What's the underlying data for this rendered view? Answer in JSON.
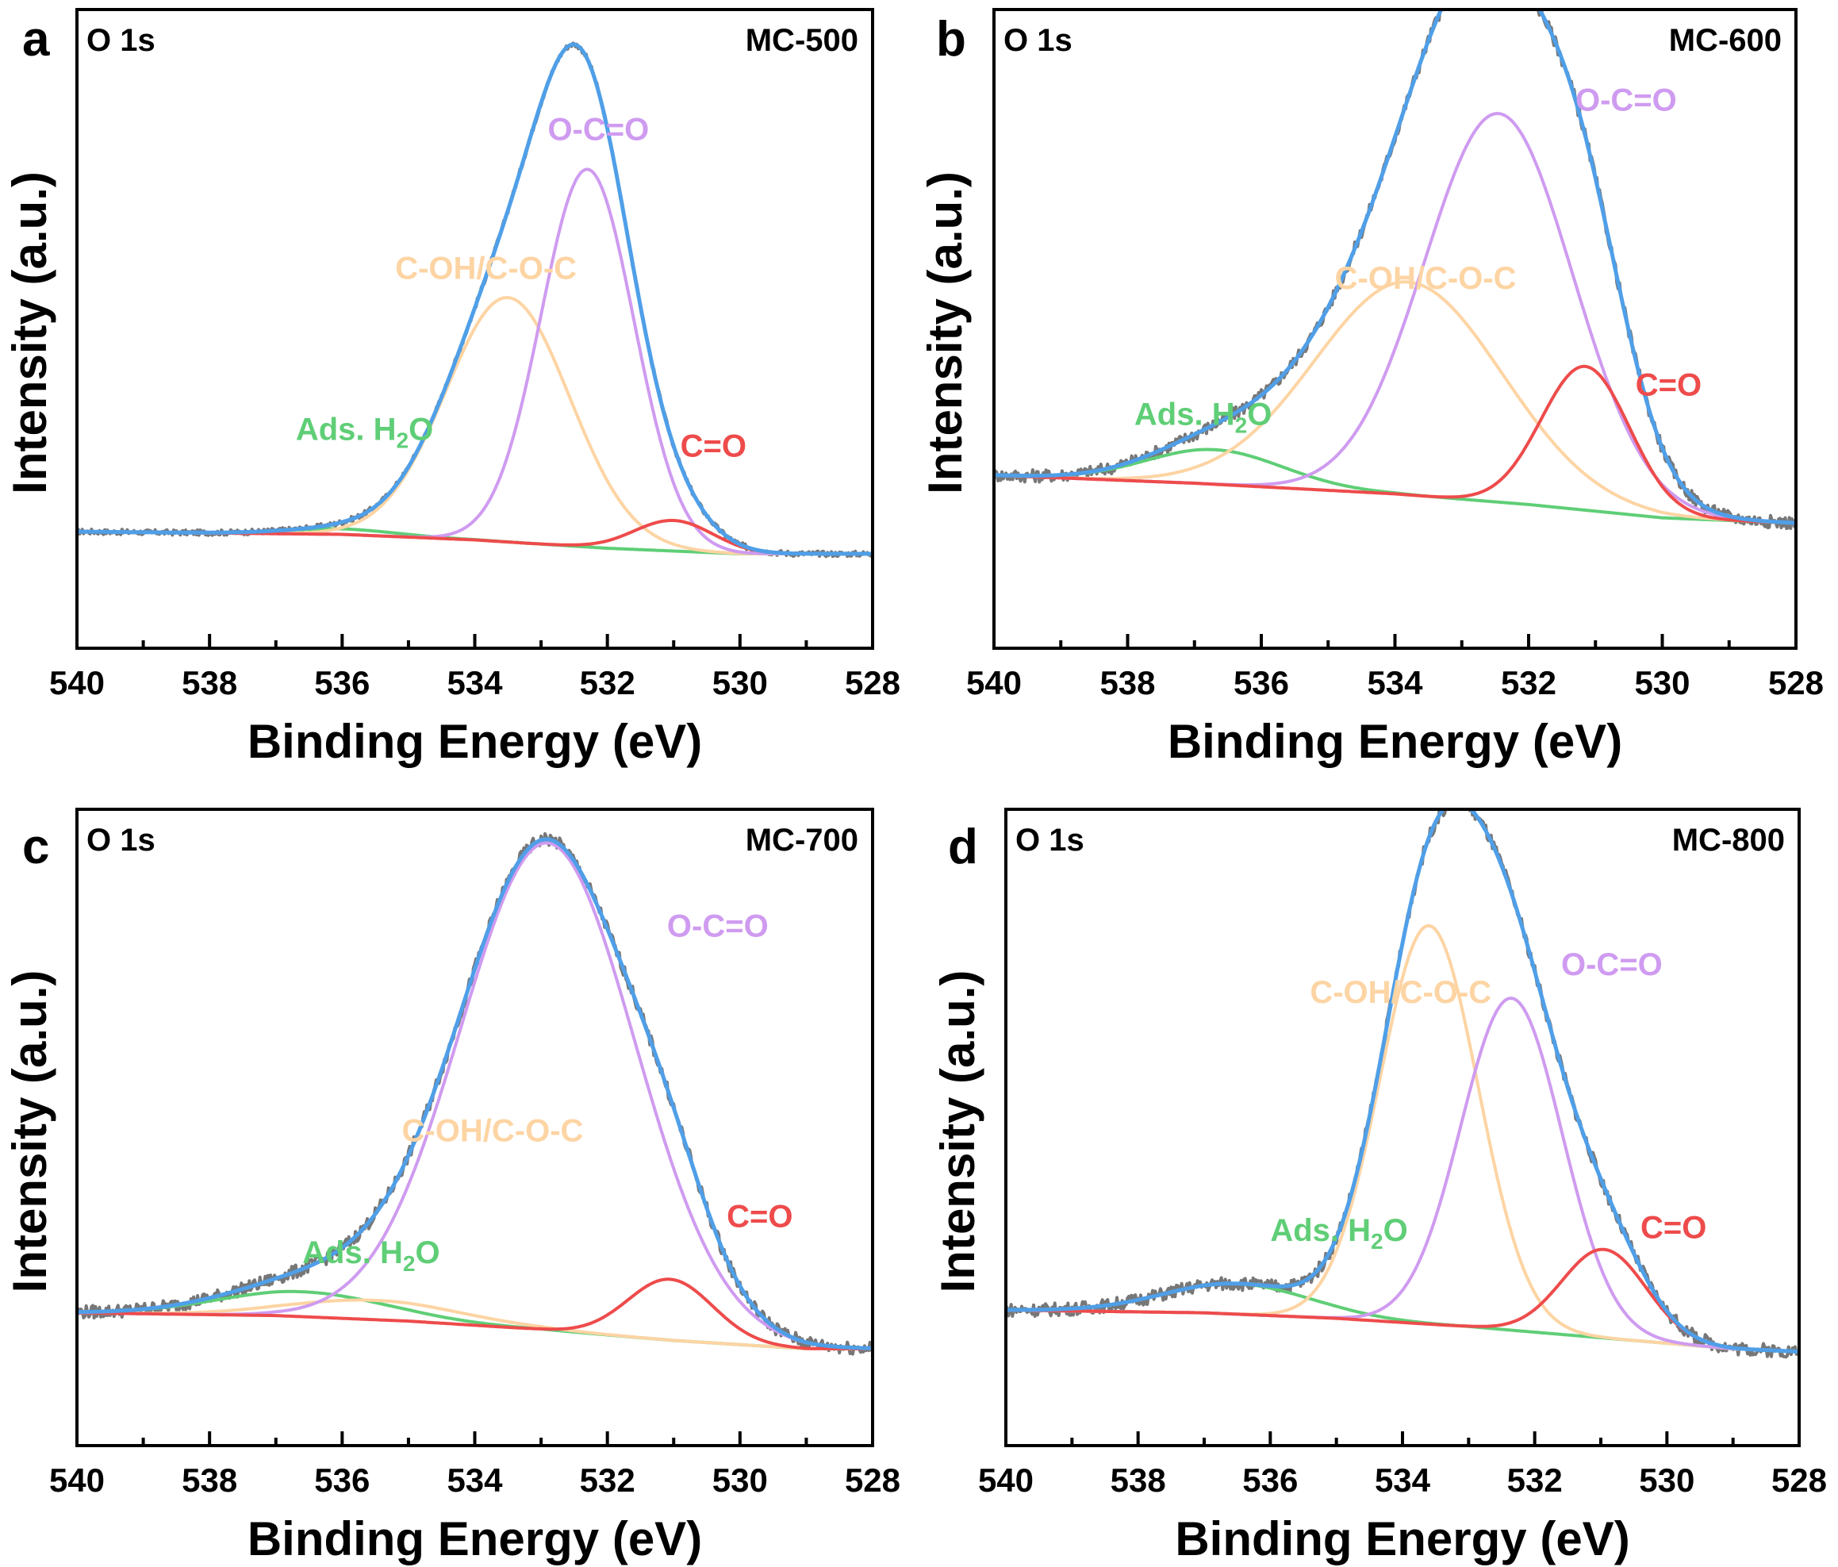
{
  "chart_data": [
    {
      "panel": "a",
      "type": "line",
      "core_level": "O 1s",
      "sample": "MC-500",
      "xlabel": "Binding Energy (eV)",
      "ylabel": "Intensity (a.u.)",
      "xlim": [
        540,
        528
      ],
      "x_ticks": [
        540,
        538,
        536,
        534,
        532,
        530,
        528
      ],
      "ylim": [
        -0.15,
        1.0
      ],
      "background": {
        "x": [
          540,
          536,
          534,
          532,
          530,
          528
        ],
        "y": [
          0.06,
          0.055,
          0.045,
          0.03,
          0.02,
          0.02
        ]
      },
      "noise_amplitude": 0.005,
      "components": [
        {
          "name": "C=O",
          "label": "C=O",
          "color": "#ee4b4b",
          "center": 531.0,
          "height": 0.055,
          "fwhm": 1.4
        },
        {
          "name": "O-C=O",
          "label": "O-C=O",
          "color": "#cf9bf0",
          "center": 532.3,
          "height": 0.68,
          "fwhm": 1.65
        },
        {
          "name": "C-OH/C-O-C",
          "label": "C-OH/C-O-C",
          "color": "#fdd4a3",
          "center": 533.5,
          "height": 0.44,
          "fwhm": 2.2
        },
        {
          "name": "Ads. H2O",
          "label": "Ads. H",
          "label_sub": "2",
          "label_end": "O",
          "color": "#5fce76",
          "center": 536.0,
          "height": 0.01,
          "fwhm": 2.0
        }
      ],
      "fit_color": "#4f9fe8",
      "raw_color": "#777777",
      "label_positions": [
        {
          "component": "O-C=O",
          "x": 532.9,
          "y": 0.765
        },
        {
          "component": "C-OH/C-O-C",
          "x": 535.2,
          "y": 0.515
        },
        {
          "component": "C=O",
          "x": 530.9,
          "y": 0.195
        },
        {
          "component": "Ads. H2O",
          "x": 536.7,
          "y": 0.225
        }
      ]
    },
    {
      "panel": "b",
      "type": "line",
      "core_level": "O 1s",
      "sample": "MC-600",
      "xlabel": "Binding Energy (eV)",
      "ylabel": "Intensity (a.u.)",
      "xlim": [
        540,
        528
      ],
      "x_ticks": [
        540,
        538,
        536,
        534,
        532,
        530,
        528
      ],
      "ylim": [
        -0.2,
        1.0
      ],
      "background": {
        "x": [
          540,
          537,
          534,
          532,
          530,
          528
        ],
        "y": [
          0.125,
          0.11,
          0.09,
          0.07,
          0.045,
          0.035
        ]
      },
      "noise_amplitude": 0.012,
      "components": [
        {
          "name": "C=O",
          "label": "C=O",
          "color": "#ee4b4b",
          "center": 531.15,
          "height": 0.27,
          "fwhm": 1.55
        },
        {
          "name": "O-C=O",
          "label": "O-C=O",
          "color": "#cf9bf0",
          "center": 532.45,
          "height": 0.73,
          "fwhm": 2.6
        },
        {
          "name": "C-OH/C-O-C",
          "label": "C-OH/C-O-C",
          "color": "#fdd4a3",
          "center": 533.8,
          "height": 0.4,
          "fwhm": 3.3
        },
        {
          "name": "Ads. H2O",
          "label": "Ads. H",
          "label_sub": "2",
          "label_end": "O",
          "color": "#5fce76",
          "center": 536.7,
          "height": 0.065,
          "fwhm": 2.4
        }
      ],
      "fit_color": "#4f9fe8",
      "raw_color": "#777777",
      "label_positions": [
        {
          "component": "O-C=O",
          "x": 531.3,
          "y": 0.81
        },
        {
          "component": "C-OH/C-O-C",
          "x": 534.9,
          "y": 0.475
        },
        {
          "component": "C=O",
          "x": 530.4,
          "y": 0.275
        },
        {
          "component": "Ads. H2O",
          "x": 537.9,
          "y": 0.22
        }
      ]
    },
    {
      "panel": "c",
      "type": "line",
      "core_level": "O 1s",
      "sample": "MC-700",
      "xlabel": "Binding Energy (eV)",
      "ylabel": "Intensity (a.u.)",
      "xlim": [
        540,
        528
      ],
      "x_ticks": [
        540,
        538,
        536,
        534,
        532,
        530,
        528
      ],
      "ylim": [
        -0.15,
        1.0
      ],
      "background": {
        "x": [
          540,
          537,
          535,
          533,
          531,
          529,
          528
        ],
        "y": [
          0.09,
          0.085,
          0.075,
          0.06,
          0.04,
          0.025,
          0.025
        ]
      },
      "noise_amplitude": 0.012,
      "components": [
        {
          "name": "C=O",
          "label": "C=O",
          "color": "#ee4b4b",
          "center": 531.05,
          "height": 0.11,
          "fwhm": 1.5
        },
        {
          "name": "O-C=O",
          "label": "O-C=O",
          "color": "#cf9bf0",
          "center": 532.9,
          "height": 0.88,
          "fwhm": 3.1
        },
        {
          "name": "C-OH/C-O-C",
          "label": "C-OH/C-O-C",
          "color": "#fdd4a3",
          "center": 535.5,
          "height": 0.035,
          "fwhm": 3.0
        },
        {
          "name": "Ads. H2O",
          "label": "Ads. H",
          "label_sub": "2",
          "label_end": "O",
          "color": "#5fce76",
          "center": 536.6,
          "height": 0.045,
          "fwhm": 3.0
        }
      ],
      "fit_color": "#4f9fe8",
      "raw_color": "#777777",
      "label_positions": [
        {
          "component": "O-C=O",
          "x": 531.1,
          "y": 0.77
        },
        {
          "component": "C-OH/C-O-C",
          "x": 535.1,
          "y": 0.4
        },
        {
          "component": "C=O",
          "x": 530.2,
          "y": 0.245
        },
        {
          "component": "Ads. H2O",
          "x": 536.6,
          "y": 0.18
        }
      ]
    },
    {
      "panel": "d",
      "type": "line",
      "core_level": "O 1s",
      "sample": "MC-800",
      "xlabel": "Binding Energy (eV)",
      "ylabel": "Intensity (a.u.)",
      "xlim": [
        540,
        528
      ],
      "x_ticks": [
        540,
        538,
        536,
        534,
        532,
        530,
        528
      ],
      "ylim": [
        -0.15,
        1.0
      ],
      "background": {
        "x": [
          540,
          537,
          535,
          533,
          531,
          529,
          528
        ],
        "y": [
          0.095,
          0.09,
          0.08,
          0.065,
          0.045,
          0.025,
          0.02
        ]
      },
      "noise_amplitude": 0.012,
      "components": [
        {
          "name": "C=O",
          "label": "C=O",
          "color": "#ee4b4b",
          "center": 530.95,
          "height": 0.16,
          "fwhm": 1.5
        },
        {
          "name": "O-C=O",
          "label": "O-C=O",
          "color": "#cf9bf0",
          "center": 532.35,
          "height": 0.6,
          "fwhm": 1.8
        },
        {
          "name": "C-OH/C-O-C",
          "label": "C-OH/C-O-C",
          "color": "#fdd4a3",
          "center": 533.6,
          "height": 0.72,
          "fwhm": 1.75
        },
        {
          "name": "Ads. H2O",
          "label": "Ads. H",
          "label_sub": "2",
          "label_end": "O",
          "color": "#5fce76",
          "center": 536.5,
          "height": 0.055,
          "fwhm": 2.6
        }
      ],
      "fit_color": "#4f9fe8",
      "raw_color": "#777777",
      "label_positions": [
        {
          "component": "O-C=O",
          "x": 531.6,
          "y": 0.7
        },
        {
          "component": "C-OH/C-O-C",
          "x": 535.4,
          "y": 0.65
        },
        {
          "component": "C=O",
          "x": 530.4,
          "y": 0.225
        },
        {
          "component": "Ads. H2O",
          "x": 536.0,
          "y": 0.22
        }
      ]
    }
  ]
}
